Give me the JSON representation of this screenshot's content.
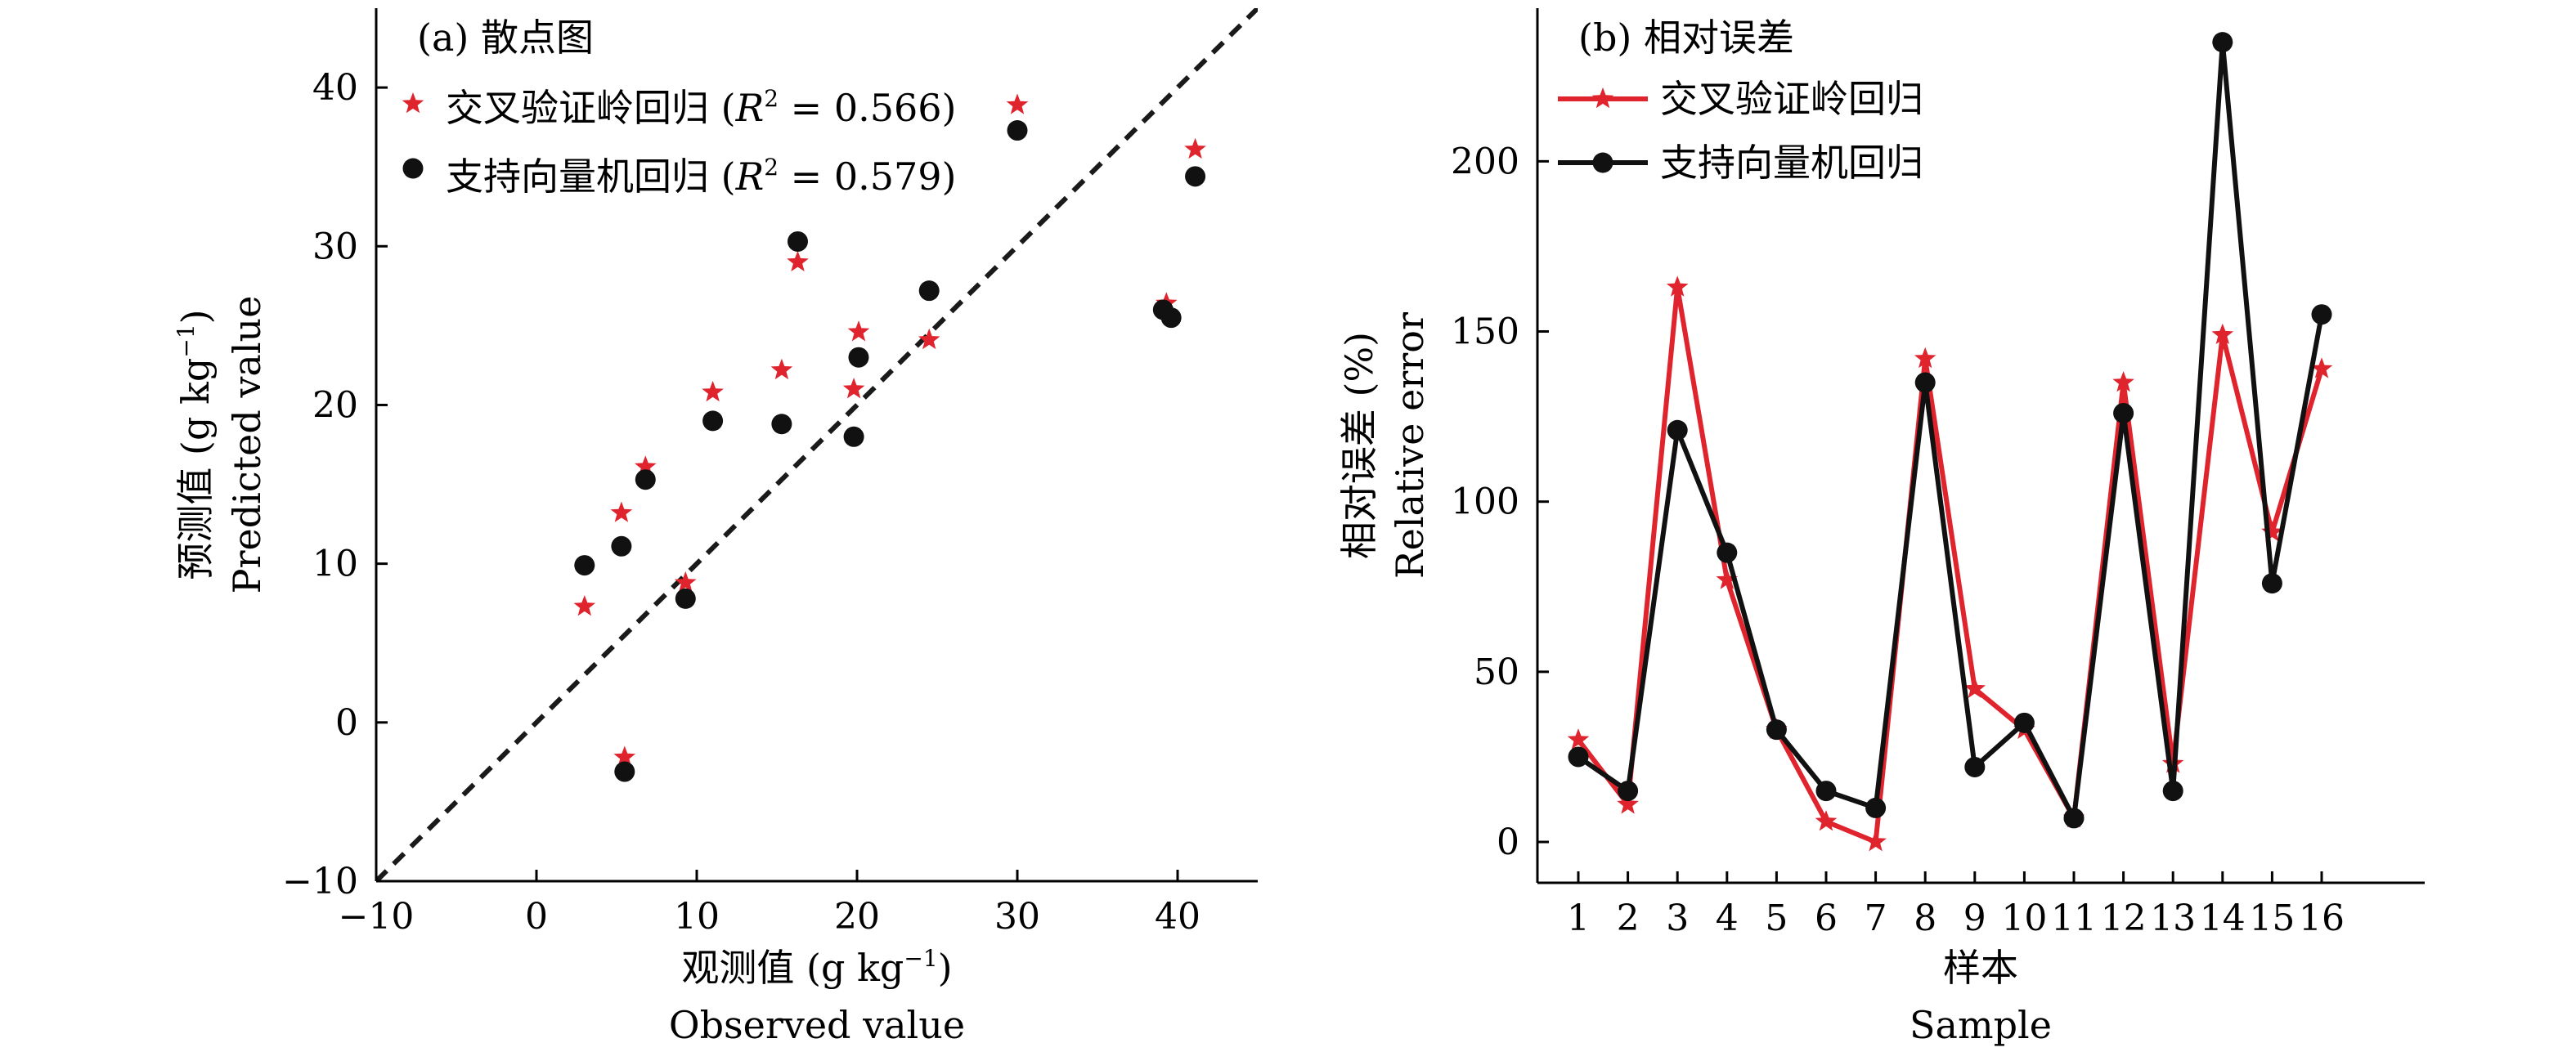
{
  "figure": {
    "colors": {
      "cv_ridge": "#e0242e",
      "svr": "#111111",
      "diagonal": "#1a1a1a"
    }
  },
  "chart_data": [
    {
      "type": "scatter",
      "panel_label": "(a) 散点图",
      "xlabel_cn": "观测值 (g kg⁻¹)",
      "xlabel_en": "Observed value",
      "ylabel_cn": "预测值 (g kg⁻¹)",
      "ylabel_en": "Predicted value",
      "xlim": [
        -10,
        45
      ],
      "ylim": [
        -10,
        45
      ],
      "xticks": [
        -10,
        0,
        10,
        20,
        30,
        40
      ],
      "yticks": [
        -10,
        0,
        10,
        20,
        30,
        40
      ],
      "xtick_labels": [
        "−10",
        "0",
        "10",
        "20",
        "30",
        "40"
      ],
      "ytick_labels": [
        "−10",
        "0",
        "10",
        "20",
        "30",
        "40"
      ],
      "reference_line": "y = x (dashed)",
      "legend_position": "top-left",
      "series": [
        {
          "name": "交叉验证岭回归",
          "legend_label": "交叉验证岭回归 (R² = 0.566)",
          "r2": 0.566,
          "marker": "star",
          "color": "#e0242e",
          "points": [
            [
              3,
              7.3
            ],
            [
              5.3,
              13.2
            ],
            [
              5.5,
              -2.2
            ],
            [
              6.8,
              16.1
            ],
            [
              9.3,
              8.8
            ],
            [
              11,
              20.8
            ],
            [
              15.3,
              22.2
            ],
            [
              16.3,
              29
            ],
            [
              19.8,
              21
            ],
            [
              20.1,
              24.6
            ],
            [
              24.5,
              24.1
            ],
            [
              30,
              38.9
            ],
            [
              39.3,
              26.4
            ],
            [
              41.1,
              36.1
            ]
          ]
        },
        {
          "name": "支持向量机回归",
          "legend_label": "支持向量机回归 (R² = 0.579)",
          "r2": 0.579,
          "marker": "circle",
          "color": "#111111",
          "points": [
            [
              3,
              9.9
            ],
            [
              5.3,
              11.1
            ],
            [
              5.5,
              -3.1
            ],
            [
              6.8,
              15.3
            ],
            [
              9.3,
              7.8
            ],
            [
              11,
              19
            ],
            [
              15.3,
              18.8
            ],
            [
              16.3,
              30.3
            ],
            [
              19.8,
              18
            ],
            [
              20.1,
              23
            ],
            [
              24.5,
              27.2
            ],
            [
              30,
              37.3
            ],
            [
              39.1,
              26
            ],
            [
              39.6,
              25.5
            ],
            [
              41.1,
              34.4
            ]
          ]
        }
      ]
    },
    {
      "type": "line",
      "panel_label": "(b) 相对误差",
      "xlabel_cn": "样本",
      "xlabel_en": "Sample",
      "ylabel_cn": "相对误差 (%)",
      "ylabel_en": "Relative error",
      "categories": [
        "1",
        "2",
        "3",
        "4",
        "5",
        "6",
        "7",
        "8",
        "9",
        "10",
        "11",
        "12",
        "13",
        "14",
        "15",
        "16"
      ],
      "ylim": [
        -12,
        245
      ],
      "yticks": [
        0,
        50,
        100,
        150,
        200
      ],
      "legend_position": "top-left",
      "series": [
        {
          "name": "交叉验证岭回归",
          "marker": "star",
          "color": "#e0242e",
          "values": [
            30,
            11,
            163,
            77,
            33,
            6,
            0,
            142,
            45,
            33,
            7,
            135,
            23,
            149,
            91,
            139
          ]
        },
        {
          "name": "支持向量机回归",
          "marker": "circle",
          "color": "#111111",
          "values": [
            25,
            15,
            121,
            85,
            33,
            15,
            10,
            135,
            22,
            35,
            7,
            126,
            15,
            235,
            76,
            155
          ]
        }
      ]
    }
  ]
}
